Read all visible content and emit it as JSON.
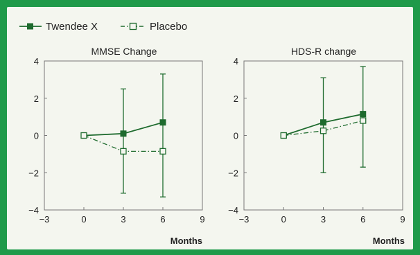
{
  "legend": {
    "active_label": "Twendee X",
    "placebo_label": "Placebo"
  },
  "colors": {
    "series": "#1e6b2e",
    "axis": "#777777",
    "frame": "#1f9a4a",
    "panel": "#f4f6ef"
  },
  "chart_data": [
    {
      "type": "line",
      "title": "MMSE Change",
      "xlabel": "Months",
      "ylabel": "",
      "xlim": [
        -3,
        9
      ],
      "ylim": [
        -4,
        4
      ],
      "xticks": [
        -3,
        0,
        3,
        6,
        9
      ],
      "yticks": [
        -4,
        -2,
        0,
        2,
        4
      ],
      "x": [
        0,
        3,
        6
      ],
      "series": [
        {
          "name": "Twendee X",
          "values": [
            0,
            0.1,
            0.7
          ],
          "error_low": [
            0,
            -3.1,
            -3.3
          ],
          "error_high": [
            0,
            2.5,
            3.3
          ],
          "marker": "filled-square",
          "line": "solid"
        },
        {
          "name": "Placebo",
          "values": [
            0,
            -0.85,
            -0.85
          ],
          "marker": "open-square",
          "line": "dash-dot"
        }
      ]
    },
    {
      "type": "line",
      "title": "HDS-R change",
      "xlabel": "Months",
      "ylabel": "",
      "xlim": [
        -3,
        9
      ],
      "ylim": [
        -4,
        4
      ],
      "xticks": [
        -3,
        0,
        3,
        6,
        9
      ],
      "yticks": [
        -4,
        -2,
        0,
        2,
        4
      ],
      "x": [
        0,
        3,
        6
      ],
      "series": [
        {
          "name": "Twendee X",
          "values": [
            0,
            0.7,
            1.15
          ],
          "error_low": [
            0,
            -2.0,
            -1.7
          ],
          "error_high": [
            0,
            3.1,
            3.7
          ],
          "marker": "filled-square",
          "line": "solid"
        },
        {
          "name": "Placebo",
          "values": [
            0,
            0.25,
            0.8
          ],
          "marker": "open-square",
          "line": "dash-dot"
        }
      ]
    }
  ]
}
